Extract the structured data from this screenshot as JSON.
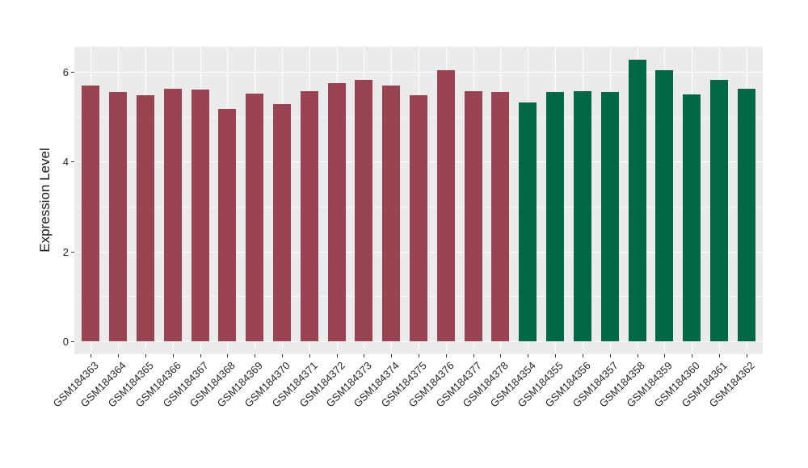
{
  "chart_data": {
    "type": "bar",
    "title": "",
    "xlabel": "",
    "ylabel": "Expression Level",
    "ylim": [
      0,
      6.56
    ],
    "yticks": [
      0,
      2,
      4,
      6
    ],
    "yminor": [
      1,
      3,
      5
    ],
    "grid": "major-and-minor, white on gray panel",
    "legend": "none",
    "panel_bg": "#EBEBEB",
    "group_colors": {
      "group1": "#9A4352",
      "group2": "#006847"
    },
    "bars": [
      {
        "category": "GSM184363",
        "value": 5.7,
        "group": "group1"
      },
      {
        "category": "GSM184364",
        "value": 5.56,
        "group": "group1"
      },
      {
        "category": "GSM184365",
        "value": 5.48,
        "group": "group1"
      },
      {
        "category": "GSM184366",
        "value": 5.62,
        "group": "group1"
      },
      {
        "category": "GSM184367",
        "value": 5.6,
        "group": "group1"
      },
      {
        "category": "GSM184368",
        "value": 5.18,
        "group": "group1"
      },
      {
        "category": "GSM184369",
        "value": 5.51,
        "group": "group1"
      },
      {
        "category": "GSM184370",
        "value": 5.29,
        "group": "group1"
      },
      {
        "category": "GSM184371",
        "value": 5.57,
        "group": "group1"
      },
      {
        "category": "GSM184372",
        "value": 5.75,
        "group": "group1"
      },
      {
        "category": "GSM184373",
        "value": 5.83,
        "group": "group1"
      },
      {
        "category": "GSM184374",
        "value": 5.7,
        "group": "group1"
      },
      {
        "category": "GSM184375",
        "value": 5.49,
        "group": "group1"
      },
      {
        "category": "GSM184376",
        "value": 6.04,
        "group": "group1"
      },
      {
        "category": "GSM184377",
        "value": 5.58,
        "group": "group1"
      },
      {
        "category": "GSM184378",
        "value": 5.56,
        "group": "group1"
      },
      {
        "category": "GSM184354",
        "value": 5.32,
        "group": "group2"
      },
      {
        "category": "GSM184355",
        "value": 5.56,
        "group": "group2"
      },
      {
        "category": "GSM184356",
        "value": 5.58,
        "group": "group2"
      },
      {
        "category": "GSM184357",
        "value": 5.56,
        "group": "group2"
      },
      {
        "category": "GSM184358",
        "value": 6.27,
        "group": "group2"
      },
      {
        "category": "GSM184359",
        "value": 6.04,
        "group": "group2"
      },
      {
        "category": "GSM184360",
        "value": 5.5,
        "group": "group2"
      },
      {
        "category": "GSM184361",
        "value": 5.82,
        "group": "group2"
      },
      {
        "category": "GSM184362",
        "value": 5.62,
        "group": "group2"
      }
    ]
  }
}
